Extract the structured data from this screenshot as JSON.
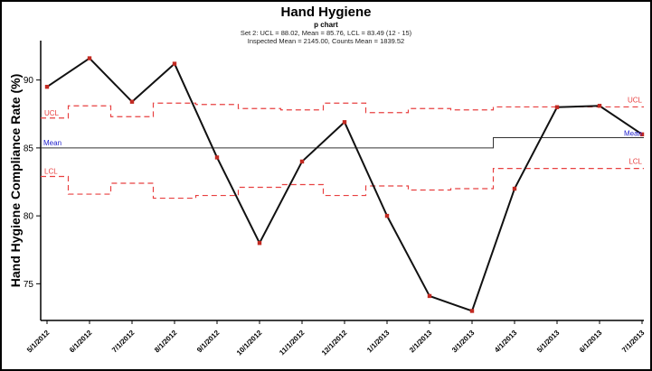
{
  "chart_data": {
    "type": "line",
    "title": "Hand Hygiene",
    "subtitle": "p chart",
    "annotations": [
      "Set 2: UCL = 88.02, Mean = 85.76, LCL = 83.49 (12 - 15)",
      "Inspected Mean = 2145.00, Counts Mean = 1839.52"
    ],
    "ylabel": "Hand Hygiene Compliance Rate (%)",
    "xlabel": "",
    "categories": [
      "5/1/2012",
      "6/1/2012",
      "7/1/2012",
      "8/1/2012",
      "9/1/2012",
      "10/1/2012",
      "11/1/2012",
      "12/1/2012",
      "1/1/2013",
      "2/1/2013",
      "3/1/2013",
      "4/1/2013",
      "5/1/2013",
      "6/1/2013",
      "7/1/2013"
    ],
    "series": [
      {
        "name": "Compliance Rate",
        "values": [
          89.5,
          91.6,
          88.4,
          91.2,
          84.3,
          78.0,
          84.0,
          86.9,
          80.0,
          74.1,
          73.0,
          82.0,
          88.0,
          88.1,
          86.0
        ]
      },
      {
        "name": "UCL",
        "values": [
          87.2,
          88.1,
          87.3,
          88.3,
          88.2,
          87.9,
          87.8,
          88.3,
          87.6,
          87.9,
          87.8,
          88.02,
          88.02,
          88.02,
          88.02
        ]
      },
      {
        "name": "LCL",
        "values": [
          82.9,
          81.6,
          82.4,
          81.3,
          81.5,
          82.1,
          82.3,
          81.5,
          82.2,
          81.9,
          82.0,
          83.49,
          83.49,
          83.49,
          83.49
        ]
      },
      {
        "name": "Mean",
        "values": [
          85.0,
          85.0,
          85.0,
          85.0,
          85.0,
          85.0,
          85.0,
          85.0,
          85.0,
          85.0,
          85.0,
          85.76,
          85.76,
          85.76,
          85.76
        ]
      }
    ],
    "yticks": [
      75,
      80,
      85,
      90
    ],
    "ylim": [
      72.3,
      92.9
    ],
    "grid": false,
    "legend": "none",
    "labels": {
      "ucl": "UCL",
      "mean": "Mean",
      "lcl": "LCL"
    },
    "colors": {
      "line": "#111111",
      "marker": "#c22a22",
      "limits": "#e84040",
      "mean_line": "#333333",
      "mean_label": "#2222cc",
      "limit_label": "#e84040",
      "axis": "#000000"
    }
  }
}
